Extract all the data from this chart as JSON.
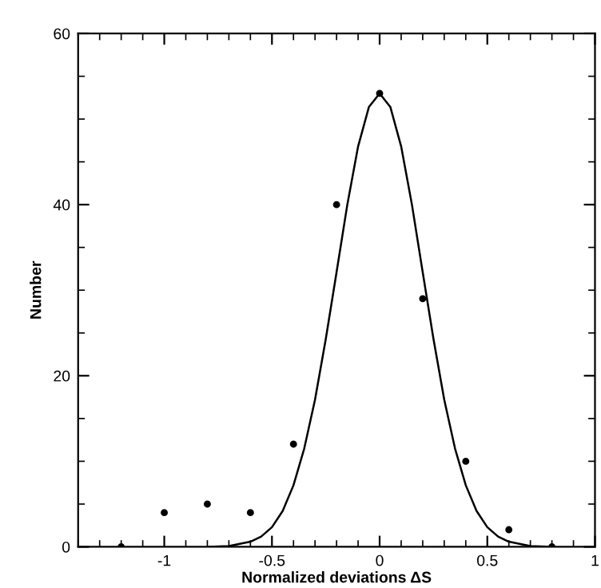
{
  "chart_data": {
    "type": "scatter",
    "xlabel": "Normalized deviations ΔS",
    "ylabel": "Number",
    "xlim": [
      -1.4,
      1
    ],
    "ylim": [
      0,
      60
    ],
    "xticks": [
      -1,
      -0.5,
      0,
      0.5,
      1
    ],
    "yticks": [
      0,
      20,
      40,
      60
    ],
    "grid": false,
    "legend": false,
    "series": [
      {
        "color": "#000000",
        "marker": "circle",
        "x": [
          -1.2,
          -1,
          -0.8,
          -0.6,
          -0.4,
          -0.2,
          0,
          0.2,
          0.4,
          0.6,
          0.8
        ],
        "values": [
          0,
          4,
          5,
          4,
          12,
          40,
          53,
          29,
          10,
          2,
          0
        ]
      },
      {
        "type": "line",
        "color": "#000000",
        "line_style": "solid",
        "x": [
          -0.8,
          -0.7,
          -0.6,
          -0.55,
          -0.5,
          -0.45,
          -0.4,
          -0.35,
          -0.3,
          -0.25,
          -0.2,
          -0.15,
          -0.1,
          -0.05,
          0,
          0.05,
          0.1,
          0.15,
          0.2,
          0.25,
          0.3,
          0.35,
          0.4,
          0.45,
          0.5,
          0.55,
          0.6,
          0.7,
          0.8
        ],
        "values": [
          0,
          0.1,
          0.6,
          1.2,
          2.3,
          4.2,
          7.2,
          11.5,
          17.2,
          24.3,
          32.1,
          40.0,
          46.8,
          51.4,
          53,
          51.4,
          46.8,
          40.0,
          32.1,
          24.3,
          17.2,
          11.5,
          7.2,
          4.2,
          2.3,
          1.2,
          0.6,
          0.1,
          0
        ]
      }
    ]
  }
}
